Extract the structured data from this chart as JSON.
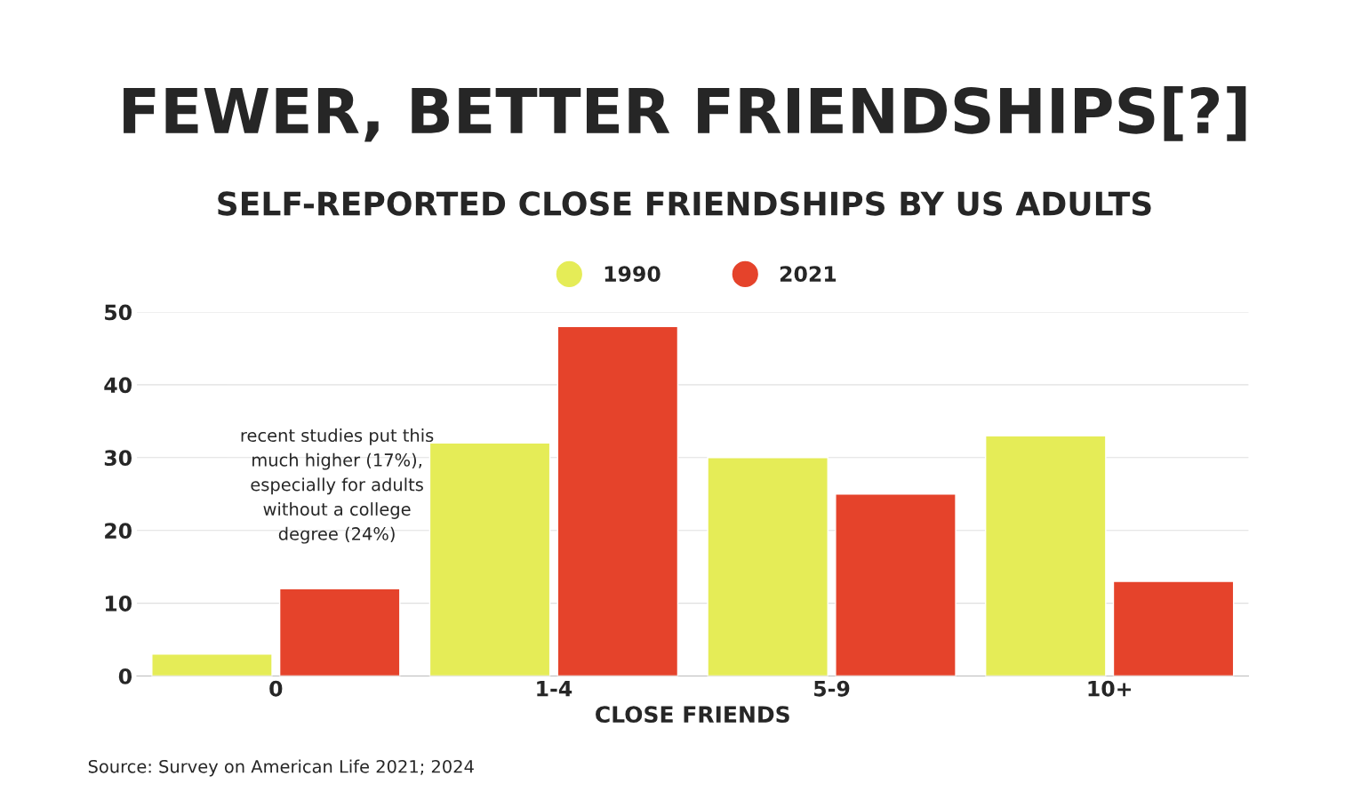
{
  "chart_data": {
    "type": "bar",
    "title": "FEWER, BETTER FRIENDSHIPS[?]",
    "subtitle": "SELF-REPORTED CLOSE FRIENDSHIPS BY US ADULTS",
    "xlabel": "CLOSE FRIENDS",
    "categories": [
      "0",
      "1-4",
      "5-9",
      "10+"
    ],
    "series": [
      {
        "name": "1990",
        "color": "#e5ec57",
        "values": [
          3,
          32,
          30,
          33
        ]
      },
      {
        "name": "2021",
        "color": "#e5432b",
        "values": [
          12,
          48,
          25,
          13
        ]
      }
    ],
    "ylim": [
      0,
      50
    ],
    "yticks": [
      0,
      10,
      20,
      30,
      40,
      50
    ],
    "grid": "y",
    "legend": "top",
    "annotations": [
      "recent studies put this\nmuch higher (17%),\nespecially for adults\nwithout a college\ndegree (24%)",
      "Source: Survey on American Life 2021; 2024"
    ]
  }
}
